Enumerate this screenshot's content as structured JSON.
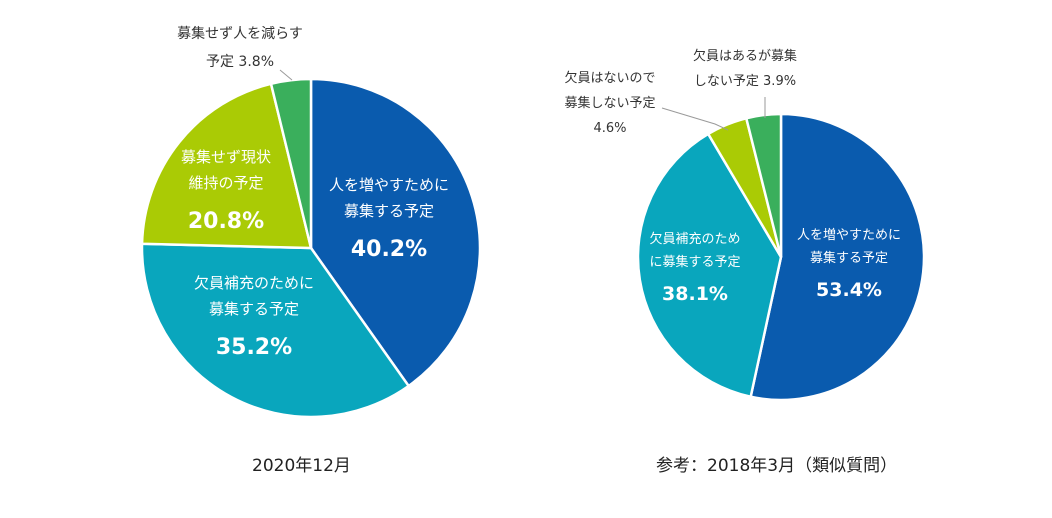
{
  "chart_data": [
    {
      "type": "pie",
      "caption": "2020年12月",
      "slices": [
        {
          "label_lines": [
            "人を増やすために",
            "募集する予定"
          ],
          "value": 40.2,
          "value_label": "40.2%",
          "color": "#0A5BAE"
        },
        {
          "label_lines": [
            "欠員補充のために",
            "募集する予定"
          ],
          "value": 35.2,
          "value_label": "35.2%",
          "color": "#09A6BD"
        },
        {
          "label_lines": [
            "募集せず現状",
            "維持の予定"
          ],
          "value": 20.8,
          "value_label": "20.8%",
          "color": "#AACB05"
        },
        {
          "label_lines": [
            "募集せず人を減らす",
            "予定 3.8%"
          ],
          "value": 3.8,
          "value_label": "",
          "color": "#3AAF5C"
        }
      ]
    },
    {
      "type": "pie",
      "caption": "参考：2018年3月（類似質問）",
      "slices": [
        {
          "label_lines": [
            "人を増やすために",
            "募集する予定"
          ],
          "value": 53.4,
          "value_label": "53.4%",
          "color": "#0A5BAE"
        },
        {
          "label_lines": [
            "欠員補充のため",
            "に募集する予定"
          ],
          "value": 38.1,
          "value_label": "38.1%",
          "color": "#09A6BD"
        },
        {
          "label_lines": [
            "欠員はないので",
            "募集しない予定",
            "4.6%"
          ],
          "value": 4.6,
          "value_label": "",
          "color": "#AACB05"
        },
        {
          "label_lines": [
            "欠員はあるが募集",
            "しない予定 3.9%"
          ],
          "value": 3.9,
          "value_label": "",
          "color": "#3AAF5C"
        }
      ]
    }
  ]
}
